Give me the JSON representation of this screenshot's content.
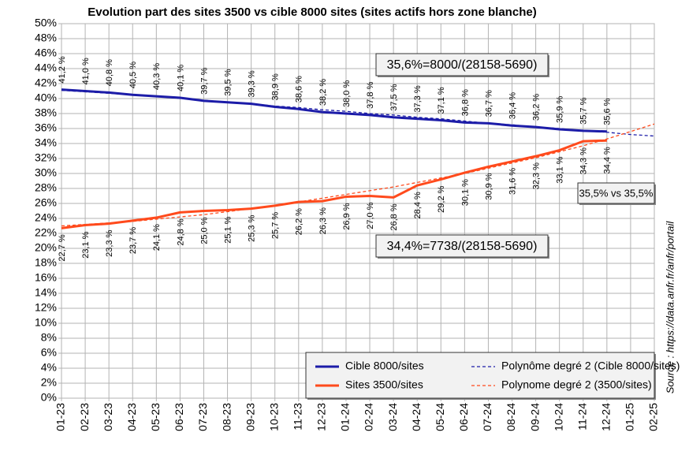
{
  "chart_data": {
    "type": "line",
    "title": "Evolution part des sites 3500 vs cible 8000 sites (sites actifs hors zone blanche)",
    "categories": [
      "01-23",
      "02-23",
      "03-23",
      "04-23",
      "05-23",
      "06-23",
      "07-23",
      "08-23",
      "09-23",
      "10-23",
      "11-23",
      "12-23",
      "01-24",
      "02-24",
      "03-24",
      "04-24",
      "05-24",
      "06-24",
      "07-24",
      "08-24",
      "09-24",
      "10-24",
      "11-24",
      "12-24",
      "01-25",
      "02-25"
    ],
    "series": [
      {
        "name": "Cible 8000/sites",
        "color": "#1c1ca8",
        "dashed": false,
        "label_side": "above",
        "values": [
          41.2,
          41.0,
          40.8,
          40.5,
          40.3,
          40.1,
          39.7,
          39.5,
          39.3,
          38.9,
          38.6,
          38.2,
          38.0,
          37.8,
          37.5,
          37.3,
          37.1,
          36.8,
          36.7,
          36.4,
          36.2,
          35.9,
          35.7,
          35.6,
          null,
          null
        ],
        "value_labels": [
          "41,2 %",
          "41,0 %",
          "40,8 %",
          "40,5 %",
          "40,3 %",
          "40,1 %",
          "39,7 %",
          "39,5 %",
          "39,3 %",
          "38,9 %",
          "38,6 %",
          "38,2 %",
          "38,0 %",
          "37,8 %",
          "37,5 %",
          "37,3 %",
          "37,1 %",
          "36,8 %",
          "36,7 %",
          "36,4 %",
          "36,2 %",
          "35,9 %",
          "35,7 %",
          "35,6 %",
          null,
          null
        ]
      },
      {
        "name": "Sites 3500/sites",
        "color": "#ff4a1c",
        "dashed": false,
        "label_side": "below",
        "values": [
          22.7,
          23.1,
          23.3,
          23.7,
          24.1,
          24.8,
          25.0,
          25.1,
          25.3,
          25.7,
          26.2,
          26.3,
          26.9,
          27.0,
          26.8,
          28.4,
          29.2,
          30.1,
          30.9,
          31.6,
          32.3,
          33.1,
          34.3,
          34.4,
          null,
          null
        ],
        "value_labels": [
          "22,7 %",
          "23,1 %",
          "23,3 %",
          "23,7 %",
          "24,1 %",
          "24,8 %",
          "25,0 %",
          "25,1 %",
          "25,3 %",
          "25,7 %",
          "26,2 %",
          "26,3 %",
          "26,9 %",
          "27,0 %",
          "26,8 %",
          "28,4 %",
          "29,2 %",
          "30,1 %",
          "30,9 %",
          "31,6 %",
          "32,3 %",
          "33,1 %",
          "34,3 %",
          "34,4 %",
          null,
          null
        ]
      },
      {
        "name": "Polynôme degré 2 (Cible 8000/sites)",
        "color": "#1c1ca8",
        "dashed": true,
        "values": [
          41.1,
          40.9,
          40.7,
          40.5,
          40.3,
          40.0,
          39.8,
          39.5,
          39.3,
          39.0,
          38.8,
          38.5,
          38.3,
          38.0,
          37.8,
          37.5,
          37.3,
          37.0,
          36.7,
          36.5,
          36.2,
          36.0,
          35.7,
          35.5,
          35.2,
          35.0
        ]
      },
      {
        "name": "Polynome degré 2 (3500/sites)",
        "color": "#ff4a1c",
        "dashed": true,
        "values": [
          23.0,
          23.2,
          23.4,
          23.6,
          23.9,
          24.2,
          24.5,
          24.9,
          25.3,
          25.7,
          26.2,
          26.7,
          27.2,
          27.7,
          28.2,
          28.8,
          29.4,
          30.0,
          30.7,
          31.4,
          32.1,
          32.9,
          33.7,
          34.6,
          35.6,
          36.6
        ]
      }
    ],
    "ylim": [
      0,
      50
    ],
    "yticks": [
      {
        "value": 0,
        "label": "0%"
      },
      {
        "value": 2,
        "label": "2%"
      },
      {
        "value": 4,
        "label": "4%"
      },
      {
        "value": 6,
        "label": "6%"
      },
      {
        "value": 8,
        "label": "8%"
      },
      {
        "value": 10,
        "label": "10%"
      },
      {
        "value": 12,
        "label": "12%"
      },
      {
        "value": 14,
        "label": "14%"
      },
      {
        "value": 16,
        "label": "16%"
      },
      {
        "value": 18,
        "label": "18%"
      },
      {
        "value": 20,
        "label": "20%"
      },
      {
        "value": 22,
        "label": "22%"
      },
      {
        "value": 24,
        "label": "24%"
      },
      {
        "value": 26,
        "label": "26%"
      },
      {
        "value": 28,
        "label": "28%"
      },
      {
        "value": 30,
        "label": "30%"
      },
      {
        "value": 32,
        "label": "32%"
      },
      {
        "value": 34,
        "label": "34%"
      },
      {
        "value": 36,
        "label": "36%"
      },
      {
        "value": 38,
        "label": "38%"
      },
      {
        "value": 40,
        "label": "40%"
      },
      {
        "value": 42,
        "label": "42%"
      },
      {
        "value": 44,
        "label": "44%"
      },
      {
        "value": 46,
        "label": "46%"
      },
      {
        "value": 48,
        "label": "48%"
      },
      {
        "value": 50,
        "label": "50%"
      }
    ],
    "grid": true,
    "legend": "bottom-right",
    "annotations": [
      "35,6%=8000/(28158-5690)",
      "34,4%=7738/(28158-5690)",
      "35,5% vs 35,5%"
    ],
    "source": "Source : https://data.anfr.fr/anfr/portail"
  }
}
